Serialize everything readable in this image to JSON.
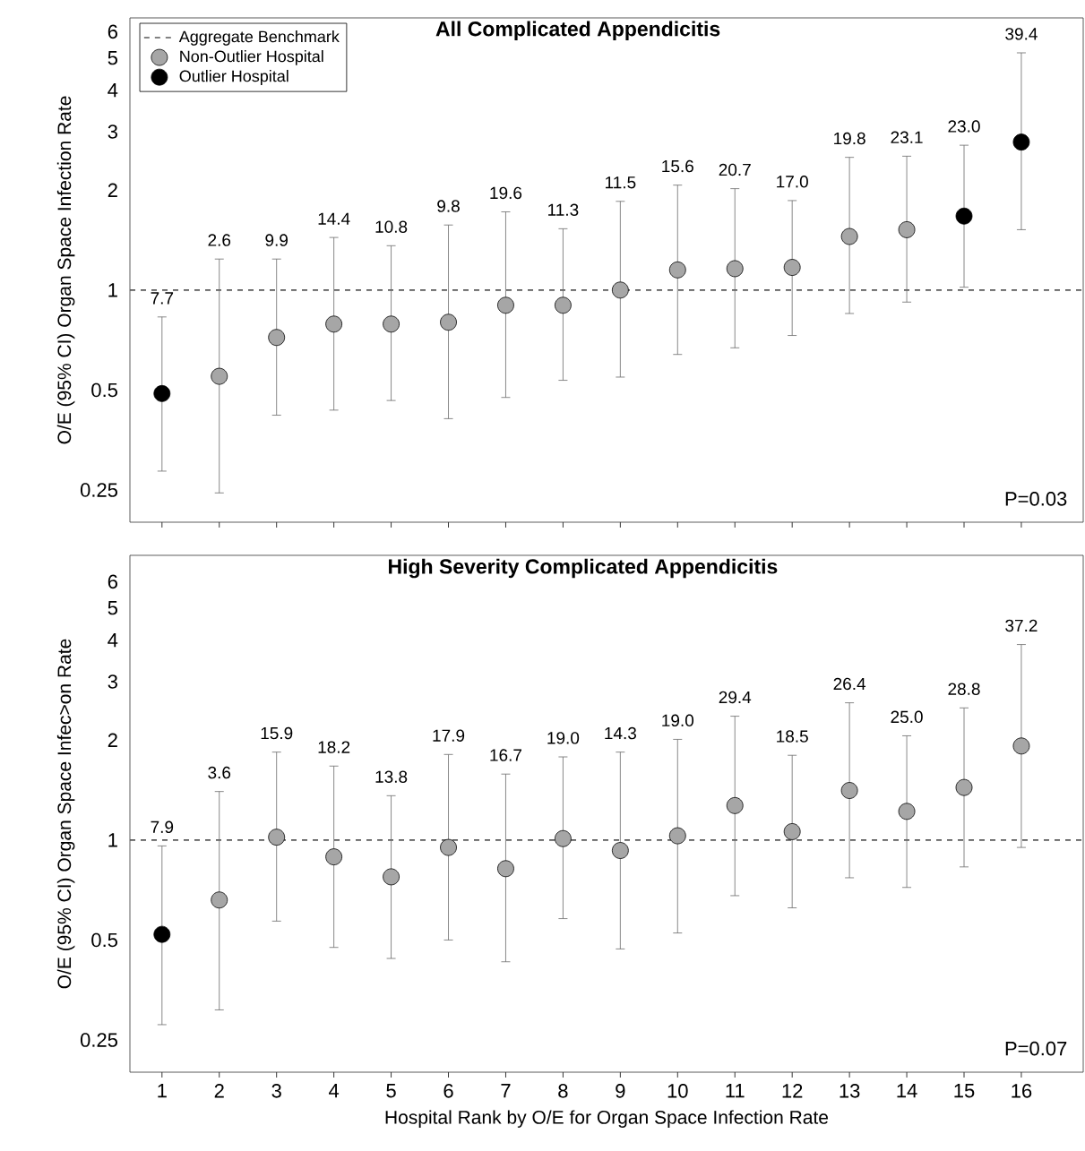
{
  "chart_data": [
    {
      "type": "scatter",
      "title": "All Complicated Appendicitis",
      "ylabel": "O/E (95% CI) Organ Space Infection Rate",
      "x": [
        1,
        2,
        3,
        4,
        5,
        6,
        7,
        8,
        9,
        10,
        11,
        12,
        13,
        14,
        15,
        16
      ],
      "xlim": [
        0.44,
        17.08
      ],
      "xticks": [
        1,
        2,
        3,
        4,
        5,
        6,
        7,
        8,
        9,
        10,
        11,
        12,
        13,
        14,
        15,
        16
      ],
      "log": "y",
      "ylim": [
        0.2,
        6.6
      ],
      "yticks": [
        0.25,
        0.5,
        1,
        2,
        3,
        4,
        5,
        6
      ],
      "marker": "circle",
      "legend": "top left",
      "tick_labels": "y",
      "ref_lines": [
        {
          "axis": "y",
          "value": 1,
          "label": "Aggregate Benchmark",
          "color": "#595959",
          "line_style": "dashed"
        }
      ],
      "annotations": [
        {
          "text": "7.7",
          "x": 1,
          "y": 0.83
        },
        {
          "text": "2.6",
          "x": 2,
          "y": 1.24
        },
        {
          "text": "9.9",
          "x": 3,
          "y": 1.24
        },
        {
          "text": "14.4",
          "x": 4,
          "y": 1.44
        },
        {
          "text": "10.8",
          "x": 5,
          "y": 1.36
        },
        {
          "text": "9.8",
          "x": 6,
          "y": 1.57
        },
        {
          "text": "19.6",
          "x": 7,
          "y": 1.72
        },
        {
          "text": "11.3",
          "x": 8,
          "y": 1.53
        },
        {
          "text": "11.5",
          "x": 9,
          "y": 1.85
        },
        {
          "text": "15.6",
          "x": 10,
          "y": 2.07
        },
        {
          "text": "20.7",
          "x": 11,
          "y": 2.02
        },
        {
          "text": "17.0",
          "x": 12,
          "y": 1.86
        },
        {
          "text": "19.8",
          "x": 13,
          "y": 2.51
        },
        {
          "text": "23.1",
          "x": 14,
          "y": 2.53
        },
        {
          "text": "23.0",
          "x": 15,
          "y": 2.73
        },
        {
          "text": "39.4",
          "x": 16,
          "y": 5.18
        },
        "P=0.03"
      ],
      "series": [
        {
          "name": "Non-Outlier Hospital",
          "color": "#a6a6a6",
          "values": [
            null,
            0.55,
            0.72,
            0.79,
            0.79,
            0.8,
            0.9,
            0.9,
            1.0,
            1.15,
            1.16,
            1.17,
            1.45,
            1.52,
            null,
            null
          ],
          "errors": [
            null,
            [
              0.245,
              1.24
            ],
            [
              0.42,
              1.24
            ],
            [
              0.435,
              1.44
            ],
            [
              0.465,
              1.36
            ],
            [
              0.41,
              1.57
            ],
            [
              0.475,
              1.72
            ],
            [
              0.535,
              1.53
            ],
            [
              0.547,
              1.85
            ],
            [
              0.64,
              2.07
            ],
            [
              0.67,
              2.02
            ],
            [
              0.73,
              1.86
            ],
            [
              0.85,
              2.51
            ],
            [
              0.92,
              2.53
            ],
            null,
            null
          ]
        },
        {
          "name": "Outlier Hospital",
          "color": "#000000",
          "values": [
            0.488,
            null,
            null,
            null,
            null,
            null,
            null,
            null,
            null,
            null,
            null,
            null,
            null,
            null,
            1.67,
            2.79
          ],
          "errors": [
            [
              0.285,
              0.83
            ],
            null,
            null,
            null,
            null,
            null,
            null,
            null,
            null,
            null,
            null,
            null,
            null,
            null,
            [
              1.02,
              2.73
            ],
            [
              1.52,
              5.18
            ]
          ]
        }
      ]
    },
    {
      "type": "scatter",
      "title": "High Severity Complicated Appendicitis",
      "xlabel": "Hospital Rank by O/E for Organ Space Infection Rate",
      "ylabel": "O/E (95% CI) Organ Space Infec>on Rate",
      "x": [
        1,
        2,
        3,
        4,
        5,
        6,
        7,
        8,
        9,
        10,
        11,
        12,
        13,
        14,
        15,
        16
      ],
      "xlim": [
        0.44,
        17.08
      ],
      "xticks": [
        1,
        2,
        3,
        4,
        5,
        6,
        7,
        8,
        9,
        10,
        11,
        12,
        13,
        14,
        15,
        16
      ],
      "log": "y",
      "ylim": [
        0.2,
        7.2
      ],
      "yticks": [
        0.25,
        0.5,
        1,
        2,
        3,
        4,
        5,
        6
      ],
      "marker": "circle",
      "ref_lines": [
        {
          "axis": "y",
          "value": 1,
          "color": "#595959",
          "line_style": "dashed"
        }
      ],
      "annotations": [
        {
          "text": "7.9",
          "x": 1,
          "y": 0.96
        },
        {
          "text": "3.6",
          "x": 2,
          "y": 1.4
        },
        {
          "text": "15.9",
          "x": 3,
          "y": 1.84
        },
        {
          "text": "18.2",
          "x": 4,
          "y": 1.67
        },
        {
          "text": "13.8",
          "x": 5,
          "y": 1.36
        },
        {
          "text": "17.9",
          "x": 6,
          "y": 1.81
        },
        {
          "text": "16.7",
          "x": 7,
          "y": 1.58
        },
        {
          "text": "19.0",
          "x": 8,
          "y": 1.78
        },
        {
          "text": "14.3",
          "x": 9,
          "y": 1.84
        },
        {
          "text": "19.0",
          "x": 10,
          "y": 2.01
        },
        {
          "text": "29.4",
          "x": 11,
          "y": 2.36
        },
        {
          "text": "18.5",
          "x": 12,
          "y": 1.8
        },
        {
          "text": "26.4",
          "x": 13,
          "y": 2.59
        },
        {
          "text": "25.0",
          "x": 14,
          "y": 2.06
        },
        {
          "text": "28.8",
          "x": 15,
          "y": 2.5
        },
        {
          "text": "37.2",
          "x": 16,
          "y": 3.88
        },
        "P=0.07"
      ],
      "series": [
        {
          "color": "#a6a6a6",
          "values": [
            null,
            0.66,
            1.02,
            0.89,
            0.775,
            0.95,
            0.82,
            1.01,
            0.93,
            1.03,
            1.27,
            1.06,
            1.41,
            1.22,
            1.44,
            1.92
          ],
          "errors": [
            null,
            [
              0.308,
              1.4
            ],
            [
              0.57,
              1.84
            ],
            [
              0.475,
              1.67
            ],
            [
              0.44,
              1.36
            ],
            [
              0.5,
              1.81
            ],
            [
              0.43,
              1.58
            ],
            [
              0.58,
              1.78
            ],
            [
              0.47,
              1.84
            ],
            [
              0.525,
              2.01
            ],
            [
              0.68,
              2.36
            ],
            [
              0.625,
              1.8
            ],
            [
              0.77,
              2.59
            ],
            [
              0.72,
              2.06
            ],
            [
              0.83,
              2.5
            ],
            [
              0.95,
              3.88
            ]
          ]
        },
        {
          "color": "#000000",
          "values": [
            0.52,
            null,
            null,
            null,
            null,
            null,
            null,
            null,
            null,
            null,
            null,
            null,
            null,
            null,
            null,
            null
          ],
          "errors": [
            [
              0.278,
              0.96
            ],
            null,
            null,
            null,
            null,
            null,
            null,
            null,
            null,
            null,
            null,
            null,
            null,
            null,
            null,
            null
          ]
        }
      ]
    }
  ]
}
